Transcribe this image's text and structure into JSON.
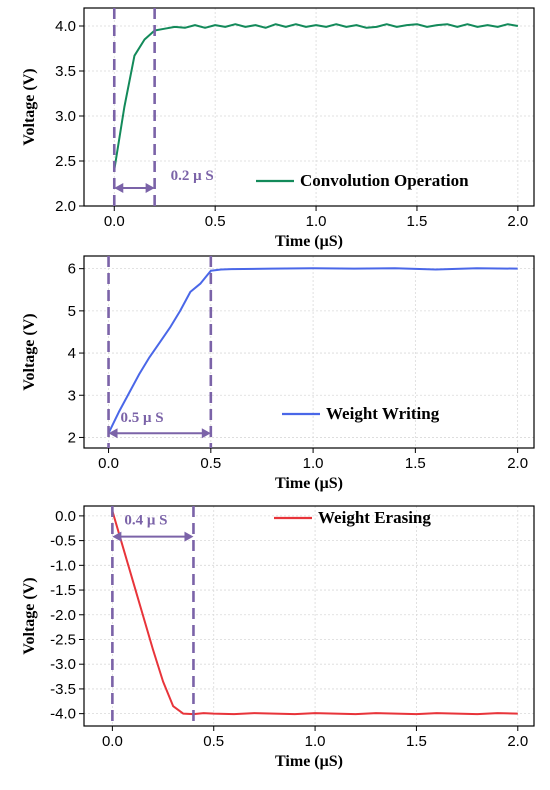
{
  "chart_data": [
    {
      "type": "line",
      "xlabel": "Time (μS)",
      "ylabel": "Voltage (V)",
      "xlim": [
        -0.15,
        2.08
      ],
      "ylim": [
        2.0,
        4.2
      ],
      "xticks": [
        0.0,
        0.5,
        1.0,
        1.5,
        2.0
      ],
      "xtick_labels": [
        "0.0",
        "0.5",
        "1.0",
        "1.5",
        "2.0"
      ],
      "yticks": [
        2.0,
        2.5,
        3.0,
        3.5,
        4.0
      ],
      "ytick_labels": [
        "2.0",
        "2.5",
        "3.0",
        "3.5",
        "4.0"
      ],
      "grid": true,
      "legend_position": "bottom-right",
      "series": [
        {
          "name": "Convolution Operation",
          "color": "#138a5a",
          "x": [
            0.0,
            0.05,
            0.1,
            0.15,
            0.2,
            0.25,
            0.3,
            0.35,
            0.4,
            0.45,
            0.5,
            0.55,
            0.6,
            0.65,
            0.7,
            0.75,
            0.8,
            0.85,
            0.9,
            0.95,
            1.0,
            1.05,
            1.1,
            1.15,
            1.2,
            1.25,
            1.3,
            1.35,
            1.4,
            1.45,
            1.5,
            1.55,
            1.6,
            1.65,
            1.7,
            1.75,
            1.8,
            1.85,
            1.9,
            1.95,
            2.0
          ],
          "y": [
            2.4,
            3.1,
            3.67,
            3.85,
            3.95,
            3.97,
            3.99,
            3.98,
            4.01,
            3.98,
            4.01,
            3.99,
            4.02,
            3.99,
            4.01,
            3.98,
            4.02,
            3.99,
            4.02,
            3.99,
            4.01,
            3.99,
            4.02,
            3.99,
            4.01,
            3.98,
            3.99,
            4.02,
            3.99,
            4.01,
            4.02,
            3.99,
            4.01,
            4.02,
            3.99,
            4.02,
            3.99,
            4.01,
            3.99,
            4.02,
            4.0
          ]
        }
      ],
      "annotations": [
        {
          "text": "0.2 μ S",
          "x_start": 0.0,
          "x_end": 0.2,
          "y_arrow": 2.2,
          "color": "#7b63a8"
        }
      ]
    },
    {
      "type": "line",
      "xlabel": "Time (μS)",
      "ylabel": "Voltage (V)",
      "xlim": [
        -0.12,
        2.08
      ],
      "ylim": [
        1.75,
        6.3
      ],
      "xticks": [
        0.0,
        0.5,
        1.0,
        1.5,
        2.0
      ],
      "xtick_labels": [
        "0.0",
        "0.5",
        "1.0",
        "1.5",
        "2.0"
      ],
      "yticks": [
        2,
        3,
        4,
        5,
        6
      ],
      "ytick_labels": [
        "2",
        "3",
        "4",
        "5",
        "6"
      ],
      "grid": true,
      "legend_position": "bottom-right",
      "series": [
        {
          "name": "Weight Writing",
          "color": "#4a67e8",
          "x": [
            0.0,
            0.05,
            0.1,
            0.15,
            0.2,
            0.25,
            0.3,
            0.35,
            0.4,
            0.45,
            0.5,
            0.55,
            0.6,
            0.8,
            1.0,
            1.2,
            1.4,
            1.6,
            1.8,
            2.0
          ],
          "y": [
            2.1,
            2.6,
            3.05,
            3.5,
            3.9,
            4.25,
            4.6,
            5.0,
            5.45,
            5.65,
            5.95,
            5.98,
            5.99,
            6.0,
            6.01,
            6.0,
            6.01,
            5.98,
            6.01,
            6.0
          ]
        }
      ],
      "annotations": [
        {
          "text": "0.5 μ S",
          "x_start": 0.0,
          "x_end": 0.5,
          "y_arrow": 2.1,
          "color": "#7b63a8"
        }
      ]
    },
    {
      "type": "line",
      "xlabel": "Time (μS)",
      "ylabel": "Voltage (V)",
      "xlim": [
        -0.14,
        2.08
      ],
      "ylim": [
        -4.25,
        0.2
      ],
      "xticks": [
        0.0,
        0.5,
        1.0,
        1.5,
        2.0
      ],
      "xtick_labels": [
        "0.0",
        "0.5",
        "1.0",
        "1.5",
        "2.0"
      ],
      "yticks": [
        0.0,
        -0.5,
        -1.0,
        -1.5,
        -2.0,
        -2.5,
        -3.0,
        -3.5,
        -4.0
      ],
      "ytick_labels": [
        "0.0",
        "-0.5",
        "-1.0",
        "-1.5",
        "-2.0",
        "-2.5",
        "-3.0",
        "-3.5",
        "-4.0"
      ],
      "grid": true,
      "legend_position": "top-right",
      "series": [
        {
          "name": "Weight Erasing",
          "color": "#e8343a",
          "x": [
            0.0,
            0.05,
            0.1,
            0.15,
            0.2,
            0.25,
            0.3,
            0.35,
            0.4,
            0.45,
            0.5,
            0.6,
            0.7,
            0.8,
            0.9,
            1.0,
            1.1,
            1.2,
            1.3,
            1.4,
            1.5,
            1.6,
            1.7,
            1.8,
            1.9,
            2.0
          ],
          "y": [
            0.1,
            -0.6,
            -1.3,
            -2.0,
            -2.7,
            -3.35,
            -3.85,
            -4.0,
            -4.01,
            -3.99,
            -4.0,
            -4.01,
            -3.99,
            -4.0,
            -4.01,
            -3.99,
            -4.0,
            -4.01,
            -3.99,
            -4.0,
            -4.01,
            -3.99,
            -4.0,
            -4.01,
            -3.99,
            -4.0
          ]
        }
      ],
      "annotations": [
        {
          "text": "0.4 μ S",
          "x_start": 0.0,
          "x_end": 0.4,
          "y_arrow": -0.42,
          "color": "#7b63a8"
        }
      ]
    }
  ]
}
